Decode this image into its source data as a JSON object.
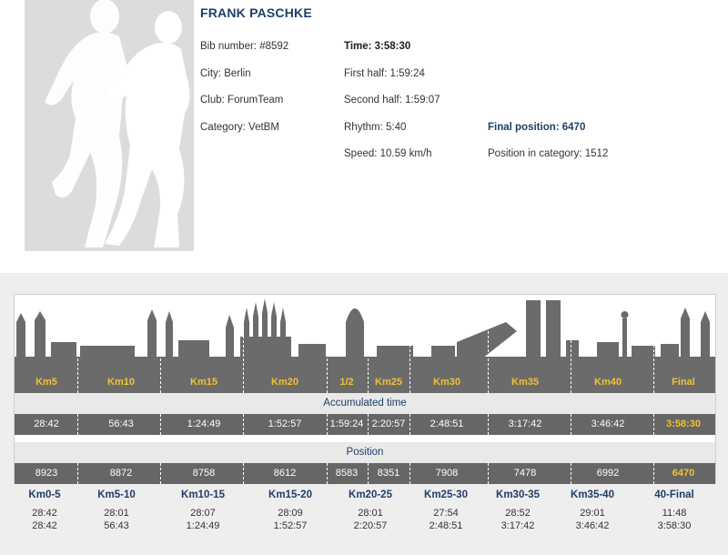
{
  "runner": {
    "name": "FRANK PASCHKE",
    "bib": "Bib number: #8592",
    "city": "City: Berlin",
    "club": "Club: ForumTeam",
    "category": "Category: VetBM",
    "time": "Time: 3:58:30",
    "first_half": "First half: 1:59:24",
    "second_half": "Second half: 1:59:07",
    "rhythm": "Rhythm: 5:40",
    "speed": "Speed: 10.59 km/h",
    "final_position": "Final position: 6470",
    "position_in_category": "Position in category: 1512"
  },
  "checkpoints": [
    "Km5",
    "Km10",
    "Km15",
    "Km20",
    "1/2",
    "Km25",
    "Km30",
    "Km35",
    "Km40",
    "Final"
  ],
  "accumulated_title": "Accumulated time",
  "accumulated": [
    "28:42",
    "56:43",
    "1:24:49",
    "1:52:57",
    "1:59:24",
    "2:20:57",
    "2:48:51",
    "3:17:42",
    "3:46:42",
    "3:58:30"
  ],
  "position_title": "Position",
  "positions": [
    "8923",
    "8872",
    "8758",
    "8612",
    "8583",
    "8351",
    "7908",
    "7478",
    "6992",
    "6470"
  ],
  "splits": [
    {
      "label": "Km0-5",
      "split": "28:42",
      "cumulative": "28:42"
    },
    {
      "label": "Km5-10",
      "split": "28:01",
      "cumulative": "56:43"
    },
    {
      "label": "Km10-15",
      "split": "28:07",
      "cumulative": "1:24:49"
    },
    {
      "label": "Km15-20",
      "split": "28:09",
      "cumulative": "1:52:57"
    },
    {
      "label": "Km20-25",
      "split": "28:01",
      "cumulative": "2:20:57"
    },
    {
      "label": "Km25-30",
      "split": "27:54",
      "cumulative": "2:48:51"
    },
    {
      "label": "Km30-35",
      "split": "28:52",
      "cumulative": "3:17:42"
    },
    {
      "label": "Km35-40",
      "split": "29:01",
      "cumulative": "3:46:42"
    },
    {
      "label": "40-Final",
      "split": "11:48",
      "cumulative": "3:58:30"
    }
  ],
  "colors": {
    "navy": "#1f3e68",
    "gold": "#f2c230",
    "dark_gray": "#666666",
    "light_gray": "#e9e9e9"
  },
  "icons": {
    "photo": "runner-silhouette-placeholder",
    "skyline": "barcelona-skyline"
  }
}
